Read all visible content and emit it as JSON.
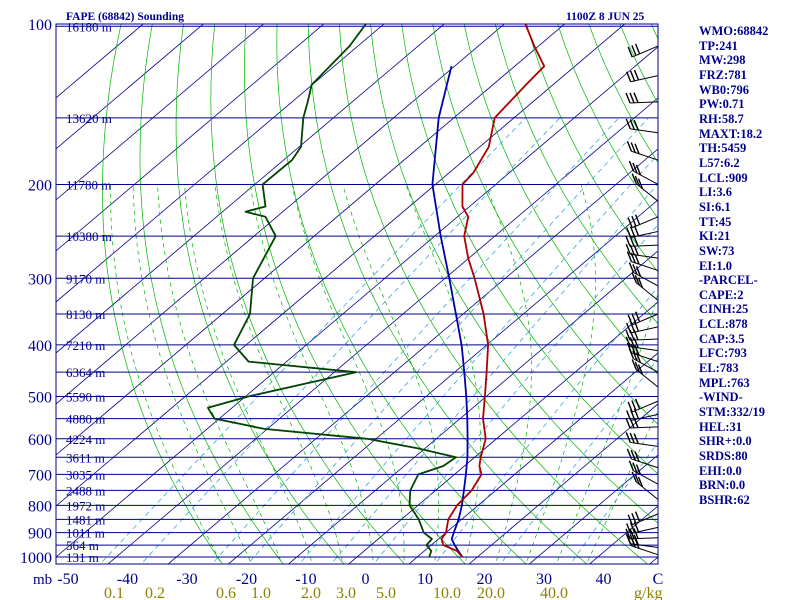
{
  "title": "FAPE (68842) Sounding",
  "datetime": "1100Z  8 JUN 25",
  "indices": [
    "WMO:68842",
    "TP:241",
    "MW:298",
    "FRZ:781",
    "WB0:796",
    "PW:0.71",
    "RH:58.7",
    "MAXT:18.2",
    "TH:5459",
    "L57:6.2",
    "LCL:909",
    "LI:3.6",
    "SI:6.1",
    "TT:45",
    "KI:21",
    "SW:73",
    "EI:1.0",
    "-PARCEL-",
    "CAPE:2",
    "CINH:25",
    "LCL:878",
    "CAP:3.5",
    "LFC:793",
    "EL:783",
    "MPL:763",
    "-WIND-",
    "STM:332/19",
    "HEL:31",
    "SHR+:0.0",
    "SRDS:80",
    "EHI:0.0",
    "BRN:0.0",
    "BSHR:62"
  ],
  "chart_data": {
    "type": "skew-t",
    "xlabel": "C",
    "ylabel": "mb",
    "xlim": [
      -50,
      50
    ],
    "ylim": [
      1000,
      100
    ],
    "x_tick_labels": [
      "-50",
      "-40",
      "-30",
      "-20",
      "-10",
      "0",
      "10",
      "20",
      "30",
      "40"
    ],
    "y_ticks": [
      100,
      200,
      300,
      400,
      500,
      600,
      700,
      800,
      900,
      1000
    ],
    "mixing_ratio_unit": "g/kg",
    "mixing_ratio_labels": [
      "0.1",
      "0.2",
      "0.6",
      "1.0",
      "2.0",
      "3.0",
      "5.0",
      "10.0",
      "20.0",
      "40.0"
    ],
    "height_labels": [
      {
        "p": 101,
        "text": "16180 m"
      },
      {
        "p": 150,
        "text": "13620 m"
      },
      {
        "p": 200,
        "text": "11780 m"
      },
      {
        "p": 250,
        "text": "10380 m"
      },
      {
        "p": 300,
        "text": "9170 m"
      },
      {
        "p": 350,
        "text": "8130 m"
      },
      {
        "p": 400,
        "text": "7210 m"
      },
      {
        "p": 450,
        "text": "6364 m"
      },
      {
        "p": 500,
        "text": "5590 m"
      },
      {
        "p": 550,
        "text": "4880 m"
      },
      {
        "p": 600,
        "text": "4224 m"
      },
      {
        "p": 650,
        "text": "3611 m"
      },
      {
        "p": 700,
        "text": "3035 m"
      },
      {
        "p": 750,
        "text": "2488 m"
      },
      {
        "p": 800,
        "text": "1972 m"
      },
      {
        "p": 850,
        "text": "1481 m"
      },
      {
        "p": 900,
        "text": "1011 m"
      },
      {
        "p": 950,
        "text": "564 m"
      },
      {
        "p": 1000,
        "text": "131 m"
      }
    ],
    "temperature": [
      [
        1000,
        17.5
      ],
      [
        975,
        15.5
      ],
      [
        950,
        12.0
      ],
      [
        925,
        10.5
      ],
      [
        900,
        10.0
      ],
      [
        850,
        7.8
      ],
      [
        800,
        6.5
      ],
      [
        750,
        6.0
      ],
      [
        700,
        4.5
      ],
      [
        675,
        2.5
      ],
      [
        650,
        1.0
      ],
      [
        600,
        -1.8
      ],
      [
        550,
        -6.2
      ],
      [
        500,
        -10.2
      ],
      [
        450,
        -14.7
      ],
      [
        400,
        -19.8
      ],
      [
        350,
        -26.6
      ],
      [
        300,
        -35.1
      ],
      [
        275,
        -40.1
      ],
      [
        250,
        -45.1
      ],
      [
        230,
        -48.2
      ],
      [
        220,
        -51.2
      ],
      [
        200,
        -55.5
      ],
      [
        190,
        -56.0
      ],
      [
        170,
        -58.5
      ],
      [
        150,
        -63.2
      ],
      [
        130,
        -64.5
      ],
      [
        120,
        -65.1
      ],
      [
        110,
        -70.7
      ],
      [
        100,
        -76.5
      ]
    ],
    "dewpoint": [
      [
        1000,
        12.0
      ],
      [
        975,
        11.2
      ],
      [
        950,
        9.2
      ],
      [
        925,
        8.9
      ],
      [
        900,
        6.3
      ],
      [
        850,
        2.9
      ],
      [
        800,
        -1.4
      ],
      [
        750,
        -4.2
      ],
      [
        700,
        -6.0
      ],
      [
        675,
        -3.5
      ],
      [
        650,
        -3.1
      ],
      [
        625,
        -11.3
      ],
      [
        600,
        -21.5
      ],
      [
        575,
        -40.5
      ],
      [
        550,
        -50.8
      ],
      [
        525,
        -54.0
      ],
      [
        500,
        -49.6
      ],
      [
        450,
        -36.4
      ],
      [
        430,
        -56.3
      ],
      [
        400,
        -62.0
      ],
      [
        350,
        -65.4
      ],
      [
        300,
        -71.9
      ],
      [
        250,
        -76.4
      ],
      [
        230,
        -81.9
      ],
      [
        225,
        -86.2
      ],
      [
        220,
        -83.9
      ],
      [
        200,
        -88.7
      ],
      [
        180,
        -88.6
      ],
      [
        170,
        -89.7
      ],
      [
        150,
        -95.0
      ],
      [
        140,
        -97.4
      ],
      [
        130,
        -100.1
      ],
      [
        110,
        -101.4
      ],
      [
        100,
        -103.0
      ]
    ],
    "parcel": [
      [
        1000,
        17.5
      ],
      [
        975,
        15.7
      ],
      [
        950,
        13.9
      ],
      [
        925,
        12.2
      ],
      [
        900,
        11.3
      ],
      [
        850,
        9.5
      ],
      [
        800,
        7.3
      ],
      [
        750,
        4.7
      ],
      [
        700,
        1.9
      ],
      [
        650,
        -1.2
      ],
      [
        600,
        -4.8
      ],
      [
        550,
        -8.8
      ],
      [
        500,
        -13.3
      ],
      [
        450,
        -18.4
      ],
      [
        400,
        -24.2
      ],
      [
        350,
        -31.2
      ],
      [
        300,
        -39.3
      ],
      [
        250,
        -49.0
      ],
      [
        200,
        -60.5
      ],
      [
        150,
        -72.5
      ],
      [
        120,
        -80.5
      ]
    ]
  },
  "colors": {
    "frame": "#00008b",
    "isobar": "#00008b",
    "isotherm": "#00008b",
    "dry_adiabat": "#00b400",
    "moist_adiabat": "#00b400",
    "mixing_ratio": "#38a8d8",
    "temperature": "#aa0000",
    "dewpoint": "#004400",
    "parcel": "#0000aa",
    "bottom_labels": "#8b8000"
  }
}
